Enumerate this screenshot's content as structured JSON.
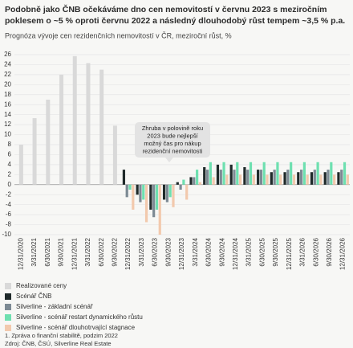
{
  "chart_data": {
    "type": "bar",
    "title": [
      "Podobně jako ČNB očekáváme dno cen nemovitostí v červnu 2023 s meziročním",
      "poklesem o ~5 % oproti červnu 2022 a následný dlouhodobý růst tempem ~3,5 % p.a."
    ],
    "subtitle": "Prognóza vývoje cen rezidenčních nemovitostí v ČR, meziroční růst, %",
    "categories": [
      "12/31/2020",
      "3/31/2021",
      "6/30/2021",
      "9/30/2021",
      "12/31/2021",
      "3/31/2022",
      "6/30/2022",
      "9/30/2022",
      "12/31/2022",
      "3/31/2023",
      "6/30/2023",
      "9/30/2023",
      "12/31/2023",
      "3/31/2024",
      "6/30/2024",
      "9/30/2024",
      "12/31/2024",
      "3/31/2025",
      "6/30/2025",
      "9/30/2025",
      "12/31/2025",
      "3/31/2026",
      "6/30/2026",
      "9/30/2026",
      "12/31/2026"
    ],
    "series": [
      {
        "name": "Realizované ceny",
        "color": "#d9d9d9",
        "values": [
          8,
          13.3,
          17,
          22,
          25.7,
          24.3,
          23,
          11.8,
          null,
          null,
          null,
          null,
          null,
          null,
          null,
          null,
          null,
          null,
          null,
          null,
          null,
          null,
          null,
          null,
          null
        ]
      },
      {
        "name": "Scénář ČNB",
        "color": "#1f2a2a",
        "values": [
          null,
          null,
          null,
          null,
          null,
          null,
          null,
          null,
          3,
          -2,
          -5,
          -3,
          0.5,
          1.5,
          3.5,
          4,
          4,
          3.5,
          3,
          2.5,
          2.5,
          2.5,
          2.5,
          2.5,
          2.5
        ]
      },
      {
        "name": "Silverline - základní scénář",
        "color": "#7d8a94",
        "values": [
          null,
          null,
          null,
          null,
          null,
          null,
          null,
          null,
          -2.5,
          -3.5,
          -6.5,
          -3.5,
          -1,
          1.5,
          3,
          3,
          3,
          3,
          3,
          3,
          3,
          3,
          3,
          3,
          3
        ]
      },
      {
        "name": "Silverline - scénář restart dynamického růstu",
        "color": "#6ee0b0",
        "values": [
          null,
          null,
          null,
          null,
          null,
          null,
          null,
          null,
          -1,
          -3,
          -5,
          -2.5,
          1,
          3,
          4.5,
          4.5,
          4.5,
          4.5,
          4.5,
          4.5,
          4.5,
          4.5,
          4.5,
          4.5,
          4.5
        ]
      },
      {
        "name": "Silverline - scénář dlouhotrvající stagnace",
        "color": "#f2c9ad",
        "values": [
          null,
          null,
          null,
          null,
          null,
          null,
          null,
          null,
          -5,
          -7.5,
          -10,
          -4.5,
          -3,
          0.5,
          1.5,
          2,
          2,
          2,
          2,
          2,
          2,
          2,
          2,
          2,
          2
        ]
      }
    ],
    "ylim": [
      -10,
      26
    ],
    "yticks": [
      -10,
      -8,
      -6,
      -4,
      -2,
      0,
      2,
      4,
      6,
      8,
      10,
      12,
      14,
      16,
      18,
      20,
      22,
      24,
      26
    ],
    "grid": true,
    "annotation": [
      "Zhruba v polovině roku",
      "2023 bude nejlepší",
      "možný čas pro nákup",
      "rezidenční nemovitosti"
    ],
    "footnotes": [
      "1. Zpráva o finanční stabilitě, podzim 2022",
      "Zdroj: ČNB, ČSÚ, Silverline Real Estate"
    ]
  }
}
